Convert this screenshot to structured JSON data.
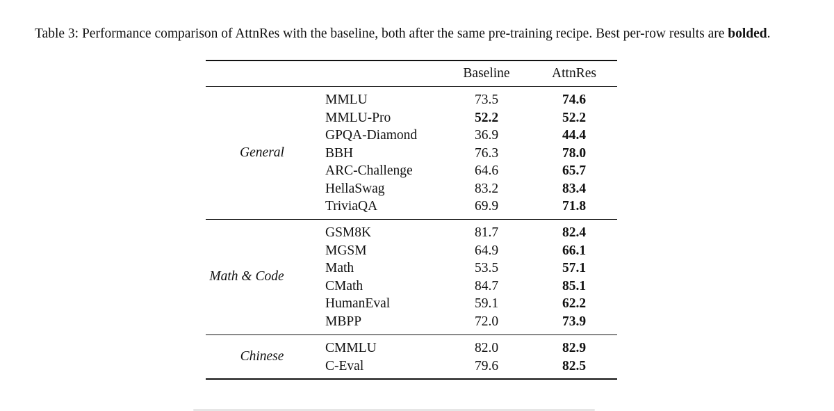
{
  "caption": {
    "label": "Table 3:",
    "text": " Performance comparison of AttnRes with the baseline, both after the same pre-training recipe. Best per-row results are ",
    "bold_word": "bolded",
    "end": "."
  },
  "table": {
    "headers": [
      "Baseline",
      "AttnRes"
    ],
    "groups": [
      {
        "name": "General",
        "rows": [
          {
            "bench": "MMLU",
            "baseline": "73.5",
            "attnres": "74.6",
            "best": "attnres"
          },
          {
            "bench": "MMLU-Pro",
            "baseline": "52.2",
            "attnres": "52.2",
            "best": "both"
          },
          {
            "bench": "GPQA-Diamond",
            "baseline": "36.9",
            "attnres": "44.4",
            "best": "attnres"
          },
          {
            "bench": "BBH",
            "baseline": "76.3",
            "attnres": "78.0",
            "best": "attnres"
          },
          {
            "bench": "ARC-Challenge",
            "baseline": "64.6",
            "attnres": "65.7",
            "best": "attnres"
          },
          {
            "bench": "HellaSwag",
            "baseline": "83.2",
            "attnres": "83.4",
            "best": "attnres"
          },
          {
            "bench": "TriviaQA",
            "baseline": "69.9",
            "attnres": "71.8",
            "best": "attnres"
          }
        ]
      },
      {
        "name": "Math & Code",
        "rows": [
          {
            "bench": "GSM8K",
            "baseline": "81.7",
            "attnres": "82.4",
            "best": "attnres"
          },
          {
            "bench": "MGSM",
            "baseline": "64.9",
            "attnres": "66.1",
            "best": "attnres"
          },
          {
            "bench": "Math",
            "baseline": "53.5",
            "attnres": "57.1",
            "best": "attnres"
          },
          {
            "bench": "CMath",
            "baseline": "84.7",
            "attnres": "85.1",
            "best": "attnres"
          },
          {
            "bench": "HumanEval",
            "baseline": "59.1",
            "attnres": "62.2",
            "best": "attnres"
          },
          {
            "bench": "MBPP",
            "baseline": "72.0",
            "attnres": "73.9",
            "best": "attnres"
          }
        ]
      },
      {
        "name": "Chinese",
        "rows": [
          {
            "bench": "CMMLU",
            "baseline": "82.0",
            "attnres": "82.9",
            "best": "attnres"
          },
          {
            "bench": "C-Eval",
            "baseline": "79.6",
            "attnres": "82.5",
            "best": "attnres"
          }
        ]
      }
    ]
  }
}
